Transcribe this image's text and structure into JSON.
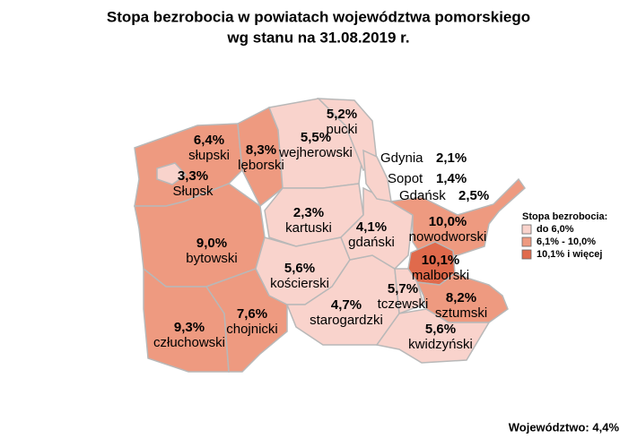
{
  "title": [
    "Stopa bezrobocia w powiatach województwa pomorskiego",
    "wg stanu na 31.08.2019 r."
  ],
  "regions": [
    {
      "name": "słupski",
      "value": "6,4%",
      "color": "#ee9a80"
    },
    {
      "name": "Słupsk",
      "value": "3,3%",
      "color": "#f9d3cc"
    },
    {
      "name": "lęborski",
      "value": "8,3%",
      "color": "#ee9a80"
    },
    {
      "name": "wejherowski",
      "value": "5,5%",
      "color": "#f9d3cc"
    },
    {
      "name": "pucki",
      "value": "5,2%",
      "color": "#f9d3cc"
    },
    {
      "name": "kartuski",
      "value": "2,3%",
      "color": "#f9d3cc"
    },
    {
      "name": "bytowski",
      "value": "9,0%",
      "color": "#ee9a80"
    },
    {
      "name": "człuchowski",
      "value": "9,3%",
      "color": "#ee9a80"
    },
    {
      "name": "chojnicki",
      "value": "7,6%",
      "color": "#ee9a80"
    },
    {
      "name": "kościerski",
      "value": "5,6%",
      "color": "#f9d3cc"
    },
    {
      "name": "starogardzki",
      "value": "4,7%",
      "color": "#f9d3cc"
    },
    {
      "name": "gdański",
      "value": "4,1%",
      "color": "#f9d3cc"
    },
    {
      "name": "nowodworski",
      "value": "10,0%",
      "color": "#ee9a80"
    },
    {
      "name": "malborski",
      "value": "10,1%",
      "color": "#e06a4c"
    },
    {
      "name": "tczewski",
      "value": "5,7%",
      "color": "#f9d3cc"
    },
    {
      "name": "sztumski",
      "value": "8,2%",
      "color": "#ee9a80"
    },
    {
      "name": "kwidzyński",
      "value": "5,6%",
      "color": "#f9d3cc"
    }
  ],
  "cities": [
    {
      "name": "Gdynia",
      "value": "2,1%",
      "color": "#f9d3cc"
    },
    {
      "name": "Sopot",
      "value": "1,4%",
      "color": "#f9d3cc"
    },
    {
      "name": "Gdańsk",
      "value": "2,5%",
      "color": "#f9d3cc"
    }
  ],
  "legend": {
    "title": "Stopa bezrobocia:",
    "items": [
      {
        "label": "do 6,0%",
        "color": "#f9d3cc"
      },
      {
        "label": "6,1% - 10,0%",
        "color": "#ee9a80"
      },
      {
        "label": "10,1% i więcej",
        "color": "#e06a4c"
      }
    ]
  },
  "footer": "Województwo: 4,4%"
}
